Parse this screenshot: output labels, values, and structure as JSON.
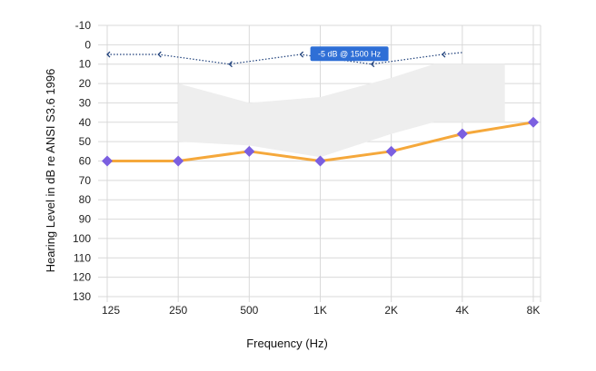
{
  "chart_data": {
    "type": "line",
    "title": "",
    "xlabel": "Frequency (Hz)",
    "ylabel": "Hearing Level in dB re ANSI S3.6 1996",
    "categories": [
      "125",
      "250",
      "500",
      "1K",
      "2K",
      "4K",
      "8K"
    ],
    "y_ticks": [
      -10,
      0,
      10,
      20,
      30,
      40,
      50,
      60,
      70,
      80,
      90,
      100,
      110,
      120,
      130
    ],
    "ylim": [
      -10,
      130
    ],
    "y_reversed": true,
    "grid": true,
    "series": [
      {
        "values": [
          60,
          60,
          55,
          60,
          55,
          46,
          40
        ],
        "color": "#f5a83b",
        "marker": "diamond",
        "marker_color": "#7b5fe0"
      }
    ],
    "dotted_series": {
      "color": "#1d3f7a",
      "marker": "chevron-left",
      "points": [
        {
          "x": 0.0,
          "y": 5
        },
        {
          "x": 0.72,
          "y": 5
        },
        {
          "x": 1.72,
          "y": 10
        },
        {
          "x": 2.72,
          "y": 5
        },
        {
          "x": 3.72,
          "y": 10
        },
        {
          "x": 4.72,
          "y": 5
        },
        {
          "x": 5.0,
          "y": 4
        }
      ]
    },
    "shaded_band": {
      "color": "#eeeeee",
      "upper": [
        {
          "x": 1.0,
          "y": 20
        },
        {
          "x": 2.0,
          "y": 30
        },
        {
          "x": 3.0,
          "y": 27
        },
        {
          "x": 4.0,
          "y": 17
        },
        {
          "x": 4.6,
          "y": 10
        },
        {
          "x": 5.6,
          "y": 10
        }
      ],
      "lower": [
        {
          "x": 5.6,
          "y": 40
        },
        {
          "x": 4.6,
          "y": 40
        },
        {
          "x": 4.0,
          "y": 46
        },
        {
          "x": 3.0,
          "y": 58
        },
        {
          "x": 2.0,
          "y": 52
        },
        {
          "x": 1.0,
          "y": 50
        }
      ]
    },
    "annotations": [
      {
        "text": "-5 dB @ 1500 Hz",
        "x": 3.5,
        "y": 7,
        "background": "#2f6fd6"
      }
    ]
  }
}
